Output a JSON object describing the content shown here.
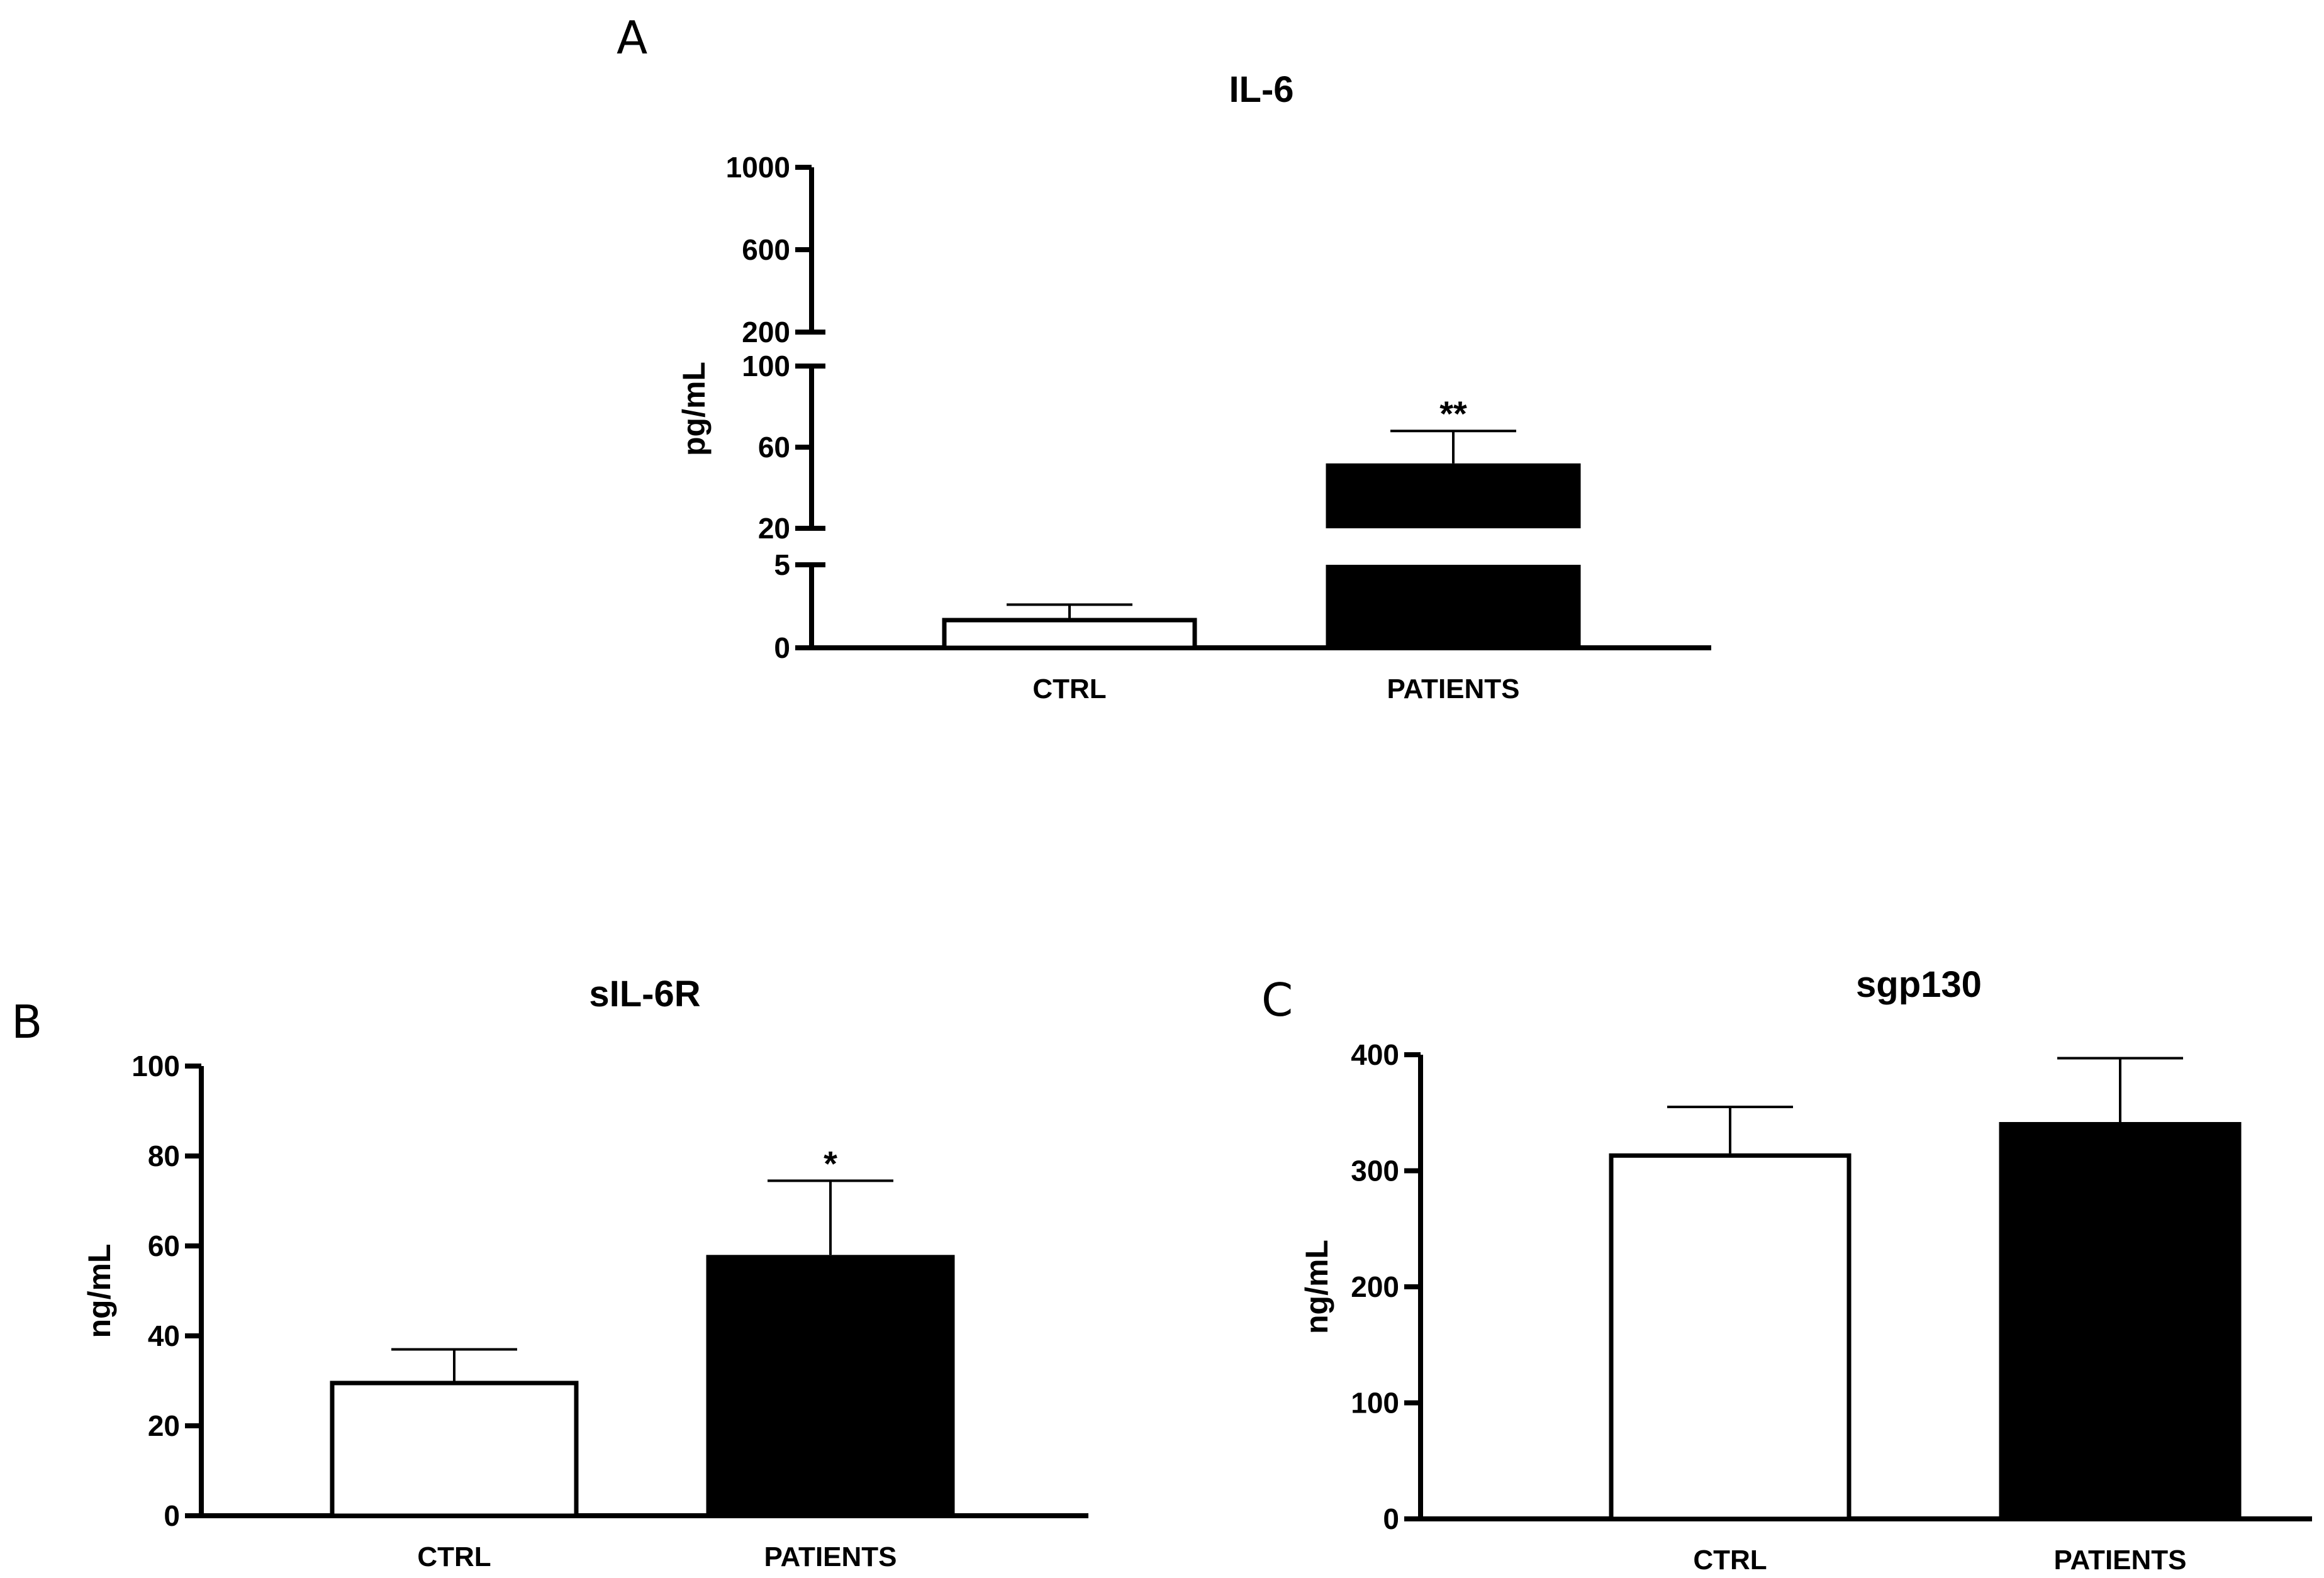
{
  "chart_data": [
    {
      "panel": "A",
      "type": "bar",
      "title": "IL-6",
      "ylabel": "pg/mL",
      "xlabel": "",
      "categories": [
        "CTRL",
        "PATIENTS"
      ],
      "values": [
        1.8,
        52
      ],
      "errors": [
        0.8,
        16
      ],
      "fills": [
        "#ffffff",
        "#000000"
      ],
      "significance": [
        "",
        "**"
      ],
      "axis_break": true,
      "segments": [
        {
          "range": [
            0,
            5
          ],
          "ticks": [
            0,
            5
          ]
        },
        {
          "range": [
            20,
            100
          ],
          "ticks": [
            20,
            60,
            100
          ]
        },
        {
          "range": [
            200,
            1000
          ],
          "ticks": [
            200,
            600,
            1000
          ]
        }
      ]
    },
    {
      "panel": "B",
      "type": "bar",
      "title": "sIL-6R",
      "ylabel": "ng/mL",
      "xlabel": "",
      "categories": [
        "CTRL",
        "PATIENTS"
      ],
      "values": [
        30,
        58
      ],
      "errors": [
        7,
        16.5
      ],
      "fills": [
        "#ffffff",
        "#000000"
      ],
      "significance": [
        "",
        "*"
      ],
      "ylim": [
        0,
        100
      ],
      "ticks": [
        0,
        20,
        40,
        60,
        80,
        100
      ]
    },
    {
      "panel": "C",
      "type": "bar",
      "title": "sgp130",
      "ylabel": "ng/mL",
      "xlabel": "",
      "categories": [
        "CTRL",
        "PATIENTS"
      ],
      "values": [
        315,
        342
      ],
      "errors": [
        40,
        55
      ],
      "fills": [
        "#ffffff",
        "#000000"
      ],
      "significance": [
        "",
        ""
      ],
      "ylim": [
        0,
        400
      ],
      "ticks": [
        0,
        100,
        200,
        300,
        400
      ]
    }
  ]
}
